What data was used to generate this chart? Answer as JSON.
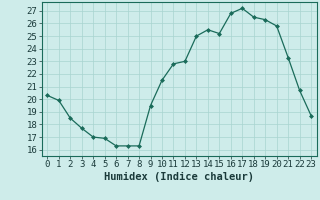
{
  "x": [
    0,
    1,
    2,
    3,
    4,
    5,
    6,
    7,
    8,
    9,
    10,
    11,
    12,
    13,
    14,
    15,
    16,
    17,
    18,
    19,
    20,
    21,
    22,
    23
  ],
  "y": [
    20.3,
    19.9,
    18.5,
    17.7,
    17.0,
    16.9,
    16.3,
    16.3,
    16.3,
    19.5,
    21.5,
    22.8,
    23.0,
    25.0,
    25.5,
    25.2,
    26.8,
    27.2,
    26.5,
    26.3,
    25.8,
    23.3,
    20.7,
    18.7
  ],
  "xlabel": "Humidex (Indice chaleur)",
  "ylim": [
    15.5,
    27.7
  ],
  "xlim": [
    -0.5,
    23.5
  ],
  "yticks": [
    16,
    17,
    18,
    19,
    20,
    21,
    22,
    23,
    24,
    25,
    26,
    27
  ],
  "xticks": [
    0,
    1,
    2,
    3,
    4,
    5,
    6,
    7,
    8,
    9,
    10,
    11,
    12,
    13,
    14,
    15,
    16,
    17,
    18,
    19,
    20,
    21,
    22,
    23
  ],
  "line_color": "#1a6b5a",
  "marker": "D",
  "marker_size": 2.0,
  "bg_color": "#ceecea",
  "grid_color_major": "#a8d4d0",
  "grid_color_minor": "#b8deda",
  "xlabel_fontsize": 7.5,
  "tick_fontsize": 6.5
}
